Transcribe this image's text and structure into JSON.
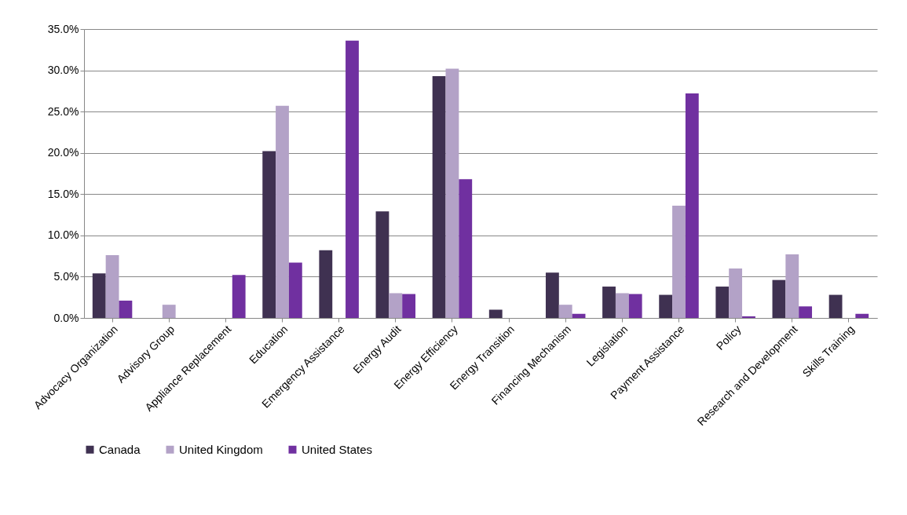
{
  "chart_data": {
    "type": "bar",
    "categories": [
      "Advocacy Organization",
      "Advisory Group",
      "Appliance Replacement",
      "Education",
      "Emergency Assistance",
      "Energy Audit",
      "Energy Efficiency",
      "Energy Transition",
      "Financing Mechanism",
      "Legislation",
      "Payment Assistance",
      "Policy",
      "Research and Development",
      "Skills Training"
    ],
    "series": [
      {
        "name": "Canada",
        "color": "#3f3151",
        "values": [
          5.4,
          0,
          0,
          20.2,
          8.2,
          12.9,
          29.3,
          1.0,
          5.5,
          3.8,
          2.8,
          3.8,
          4.6,
          2.8
        ]
      },
      {
        "name": "United Kingdom",
        "color": "#b3a2c7",
        "values": [
          7.6,
          1.6,
          0,
          25.7,
          0,
          3.0,
          30.2,
          0,
          1.6,
          3.0,
          13.6,
          6.0,
          7.7,
          0
        ]
      },
      {
        "name": "United States",
        "color": "#7030a0",
        "values": [
          2.1,
          0,
          5.2,
          6.7,
          33.6,
          2.9,
          16.8,
          0,
          0.5,
          2.9,
          27.2,
          0.2,
          1.4,
          0.5
        ]
      }
    ],
    "ylim": [
      0,
      35
    ],
    "yticks": [
      {
        "value": 0,
        "label": "0.0%"
      },
      {
        "value": 5,
        "label": "5.0%"
      },
      {
        "value": 10,
        "label": "10.0%"
      },
      {
        "value": 15,
        "label": "15.0%"
      },
      {
        "value": 20,
        "label": "20.0%"
      },
      {
        "value": 25,
        "label": "25.0%"
      },
      {
        "value": 30,
        "label": "30.0%"
      },
      {
        "value": 35,
        "label": "35.0%"
      }
    ],
    "grid": "y",
    "legend": "bottom"
  }
}
